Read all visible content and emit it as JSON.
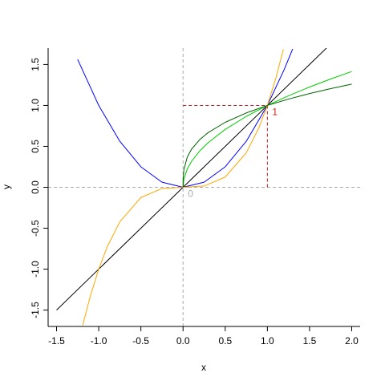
{
  "chart_data": {
    "type": "line",
    "title": "",
    "xlabel": "x",
    "ylabel": "y",
    "xlim": [
      -1.6,
      2.1
    ],
    "ylim": [
      -1.7,
      1.7
    ],
    "grid": false,
    "x_ticks": [
      "-1.5",
      "-1.0",
      "-0.5",
      "0.0",
      "0.5",
      "1.0",
      "1.5",
      "2.0"
    ],
    "y_ticks": [
      "-1.5",
      "-1.0",
      "-0.5",
      "0.0",
      "0.5",
      "1.0",
      "1.5"
    ],
    "x_tick_values": [
      -1.5,
      -1.0,
      -0.5,
      0.0,
      0.5,
      1.0,
      1.5,
      2.0
    ],
    "y_tick_values": [
      -1.5,
      -1.0,
      -0.5,
      0.0,
      0.5,
      1.0,
      1.5
    ],
    "series": [
      {
        "color": "#000000",
        "x": [
          -1.5,
          -1.0,
          -0.5,
          0.0,
          0.5,
          1.0,
          1.5,
          2.0
        ],
        "y": [
          -1.5,
          -1.0,
          -0.5,
          0.0,
          0.5,
          1.0,
          1.5,
          2.0
        ]
      },
      {
        "color": "#0000ff",
        "x": [
          -1.25,
          -1.0,
          -0.75,
          -0.5,
          -0.25,
          0.0,
          0.25,
          0.5,
          0.75,
          1.0,
          1.2,
          1.3
        ],
        "y": [
          1.5625,
          1.0,
          0.5625,
          0.25,
          0.0625,
          0.0,
          0.0625,
          0.25,
          0.5625,
          1.0,
          1.44,
          1.69
        ]
      },
      {
        "color": "#ffa500",
        "x": [
          -1.19,
          -1.1,
          -1.0,
          -0.9,
          -0.75,
          -0.5,
          -0.25,
          0.0,
          0.25,
          0.5,
          0.75,
          0.9,
          1.0,
          1.1,
          1.19
        ],
        "y": [
          -1.685,
          -1.331,
          -1.0,
          -0.729,
          -0.4219,
          -0.125,
          -0.0156,
          0.0,
          0.0156,
          0.125,
          0.4219,
          0.729,
          1.0,
          1.331,
          1.685
        ]
      },
      {
        "color": "#00cc00",
        "x": [
          0.0,
          0.01,
          0.05,
          0.1,
          0.2,
          0.3,
          0.5,
          0.75,
          1.0,
          1.25,
          1.5,
          1.75,
          2.0
        ],
        "y": [
          0.0,
          0.1,
          0.2236,
          0.3162,
          0.4472,
          0.5477,
          0.7071,
          0.866,
          1.0,
          1.118,
          1.2247,
          1.3229,
          1.4142
        ]
      },
      {
        "color": "#006400",
        "x": [
          0.0,
          0.001,
          0.01,
          0.05,
          0.1,
          0.2,
          0.3,
          0.5,
          0.75,
          1.0,
          1.25,
          1.5,
          1.75,
          2.0
        ],
        "y": [
          0.0,
          0.1,
          0.2154,
          0.3684,
          0.4642,
          0.5848,
          0.6694,
          0.7937,
          0.9086,
          1.0,
          1.0772,
          1.1447,
          1.205,
          1.2599
        ]
      }
    ],
    "reference_lines": [
      {
        "kind": "horizontal",
        "y": 0.0,
        "color": "#aaaaaa",
        "style": "dashed"
      },
      {
        "kind": "vertical",
        "x": 0.0,
        "color": "#aaaaaa",
        "style": "dashed"
      },
      {
        "kind": "horizontal",
        "y": 1.0,
        "x_from": 0.0,
        "x_to": 1.0,
        "color": "#b22222",
        "style": "dashed"
      },
      {
        "kind": "vertical",
        "x": 1.0,
        "y_from": 0.0,
        "y_to": 1.0,
        "color": "#b22222",
        "style": "dashed"
      }
    ],
    "annotations": [
      {
        "text": "0",
        "x": 0.0,
        "y": 0.0,
        "color": "#aaaaaa"
      },
      {
        "text": "1",
        "x": 1.0,
        "y": 1.0,
        "color": "#cc2222"
      }
    ]
  }
}
